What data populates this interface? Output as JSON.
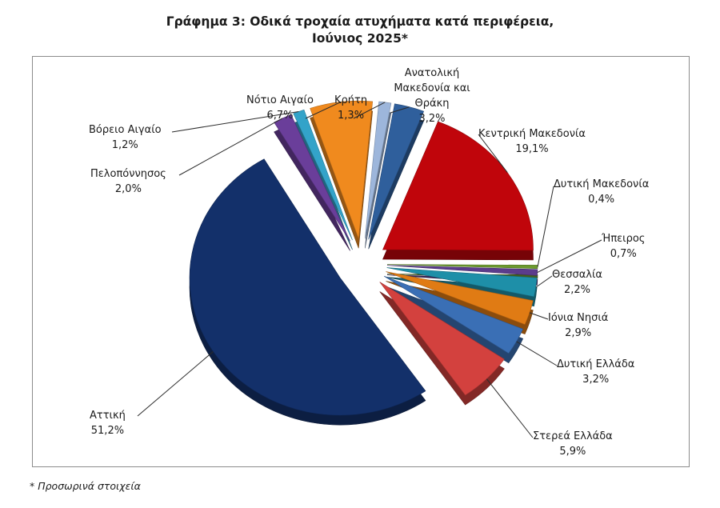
{
  "title_line1": "Γράφημα 3: Οδικά τροχαία ατυχήματα κατά περιφέρεια,",
  "title_line2": "Ιούνιος 2025*",
  "footnote": "* Προσωρινά στοιχεία",
  "chart_data": {
    "type": "pie",
    "unit": "%",
    "title": "Γράφημα 3: Οδικά τροχαία ατυχήματα κατά περιφέρεια, Ιούνιος 2025*",
    "slices": [
      {
        "label": "Ανατολική Μακεδονία και Θράκη",
        "value": 3.2,
        "display": "3,2%",
        "color": "#2F5F9C"
      },
      {
        "label": "Κεντρική Μακεδονία",
        "value": 19.1,
        "display": "19,1%",
        "color": "#C0050B"
      },
      {
        "label": "Δυτική Μακεδονία",
        "value": 0.4,
        "display": "0,4%",
        "color": "#6C9A2E"
      },
      {
        "label": "Ήπειρος",
        "value": 0.7,
        "display": "0,7%",
        "color": "#5B3C8C"
      },
      {
        "label": "Θεσσαλία",
        "value": 2.2,
        "display": "2,2%",
        "color": "#1E8FA8"
      },
      {
        "label": "Ιόνια Νησιά",
        "value": 2.9,
        "display": "2,9%",
        "color": "#E07B14"
      },
      {
        "label": "Δυτική Ελλάδα",
        "value": 3.2,
        "display": "3,2%",
        "color": "#3A6FB5"
      },
      {
        "label": "Στερεά Ελλάδα",
        "value": 5.9,
        "display": "5,9%",
        "color": "#D3413E"
      },
      {
        "label": "Αττική",
        "value": 51.2,
        "display": "51,2%",
        "color": "#13306A"
      },
      {
        "label": "Πελοπόννησος",
        "value": 2.0,
        "display": "2,0%",
        "color": "#6A3E9A"
      },
      {
        "label": "Βόρειο Αιγαίο",
        "value": 1.2,
        "display": "1,2%",
        "color": "#33A3C9"
      },
      {
        "label": "Νότιο Αιγαίο",
        "value": 6.7,
        "display": "6,7%",
        "color": "#F08A1E"
      },
      {
        "label": "Κρήτη",
        "value": 1.3,
        "display": "1,3%",
        "color": "#9DB6DB"
      }
    ]
  }
}
